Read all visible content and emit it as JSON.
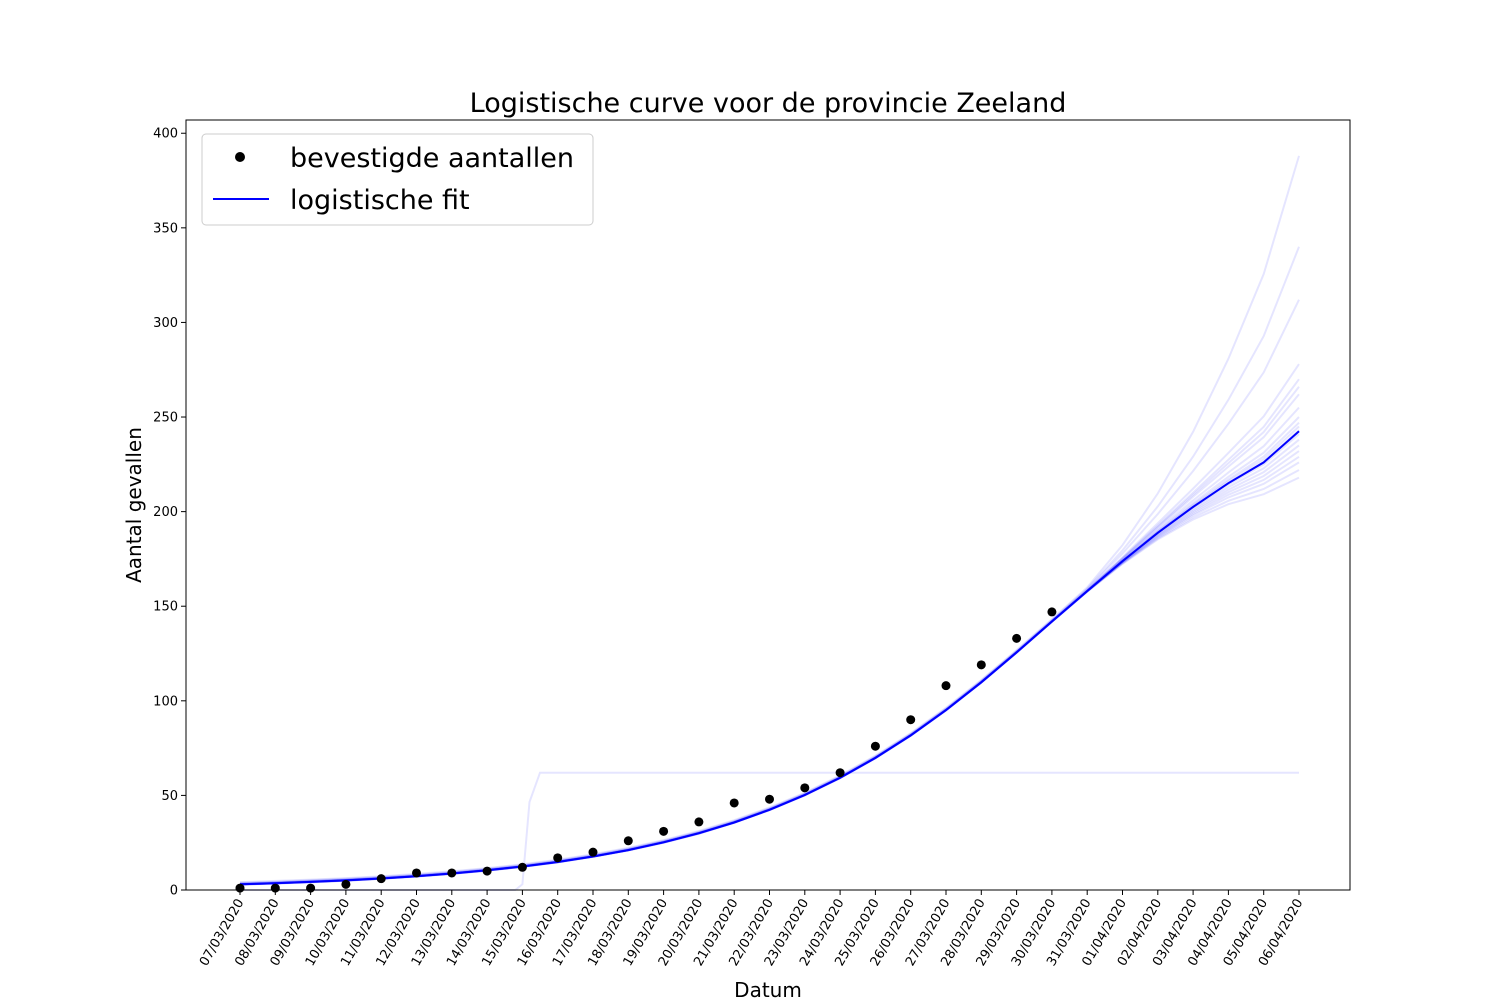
{
  "chart_data": {
    "type": "line",
    "title": "Logistische curve voor de provincie Zeeland",
    "xlabel": "Datum",
    "ylabel": "Aantal gevallen",
    "categories": [
      "07/03/2020",
      "08/03/2020",
      "09/03/2020",
      "10/03/2020",
      "11/03/2020",
      "12/03/2020",
      "13/03/2020",
      "14/03/2020",
      "15/03/2020",
      "16/03/2020",
      "17/03/2020",
      "18/03/2020",
      "19/03/2020",
      "20/03/2020",
      "21/03/2020",
      "22/03/2020",
      "23/03/2020",
      "24/03/2020",
      "25/03/2020",
      "26/03/2020",
      "27/03/2020",
      "28/03/2020",
      "29/03/2020",
      "30/03/2020",
      "31/03/2020",
      "01/04/2020",
      "02/04/2020",
      "03/04/2020",
      "04/04/2020",
      "05/04/2020",
      "06/04/2020"
    ],
    "ylim": [
      0,
      407
    ],
    "yticks": [
      0,
      50,
      100,
      150,
      200,
      250,
      300,
      350,
      400
    ],
    "grid": false,
    "legend_position": "top-left",
    "legend": [
      {
        "label": "bevestigde aantallen",
        "marker": "dot",
        "color": "#000000"
      },
      {
        "label": "logistische fit",
        "marker": "line",
        "color": "#0000ff"
      }
    ],
    "series": [
      {
        "name": "bevestigde aantallen",
        "kind": "scatter",
        "color": "#000000",
        "values": [
          1,
          1,
          1,
          3,
          6,
          9,
          9,
          10,
          12,
          17,
          20,
          26,
          31,
          36,
          46,
          48,
          54,
          62,
          76,
          90,
          108,
          119,
          133,
          147
        ]
      },
      {
        "name": "logistische fit",
        "kind": "line",
        "color": "#0000ff",
        "values": [
          3,
          3.6,
          4.3,
          5.1,
          6.1,
          7.3,
          8.7,
          10.4,
          12.4,
          14.8,
          17.7,
          21.1,
          25.2,
          30.0,
          35.7,
          42.4,
          50.2,
          59.3,
          69.8,
          81.7,
          95.1,
          109.8,
          125.6,
          141.9,
          158.0,
          173.8,
          188.8,
          202.5,
          215.0,
          226.0,
          242.5
        ]
      }
    ],
    "bootstrap_fits": {
      "color": "#0000ff",
      "opacity": 0.1,
      "count": 22,
      "end_values": [
        388,
        340,
        312,
        278,
        270,
        266,
        262,
        255,
        250,
        247,
        245,
        243,
        241,
        238,
        235,
        232,
        229,
        226,
        222,
        218
      ],
      "outlier_plateau": {
        "start_category": "15/03/2020",
        "rise_end_category": "16/03/2020",
        "plateau": 62
      }
    }
  }
}
